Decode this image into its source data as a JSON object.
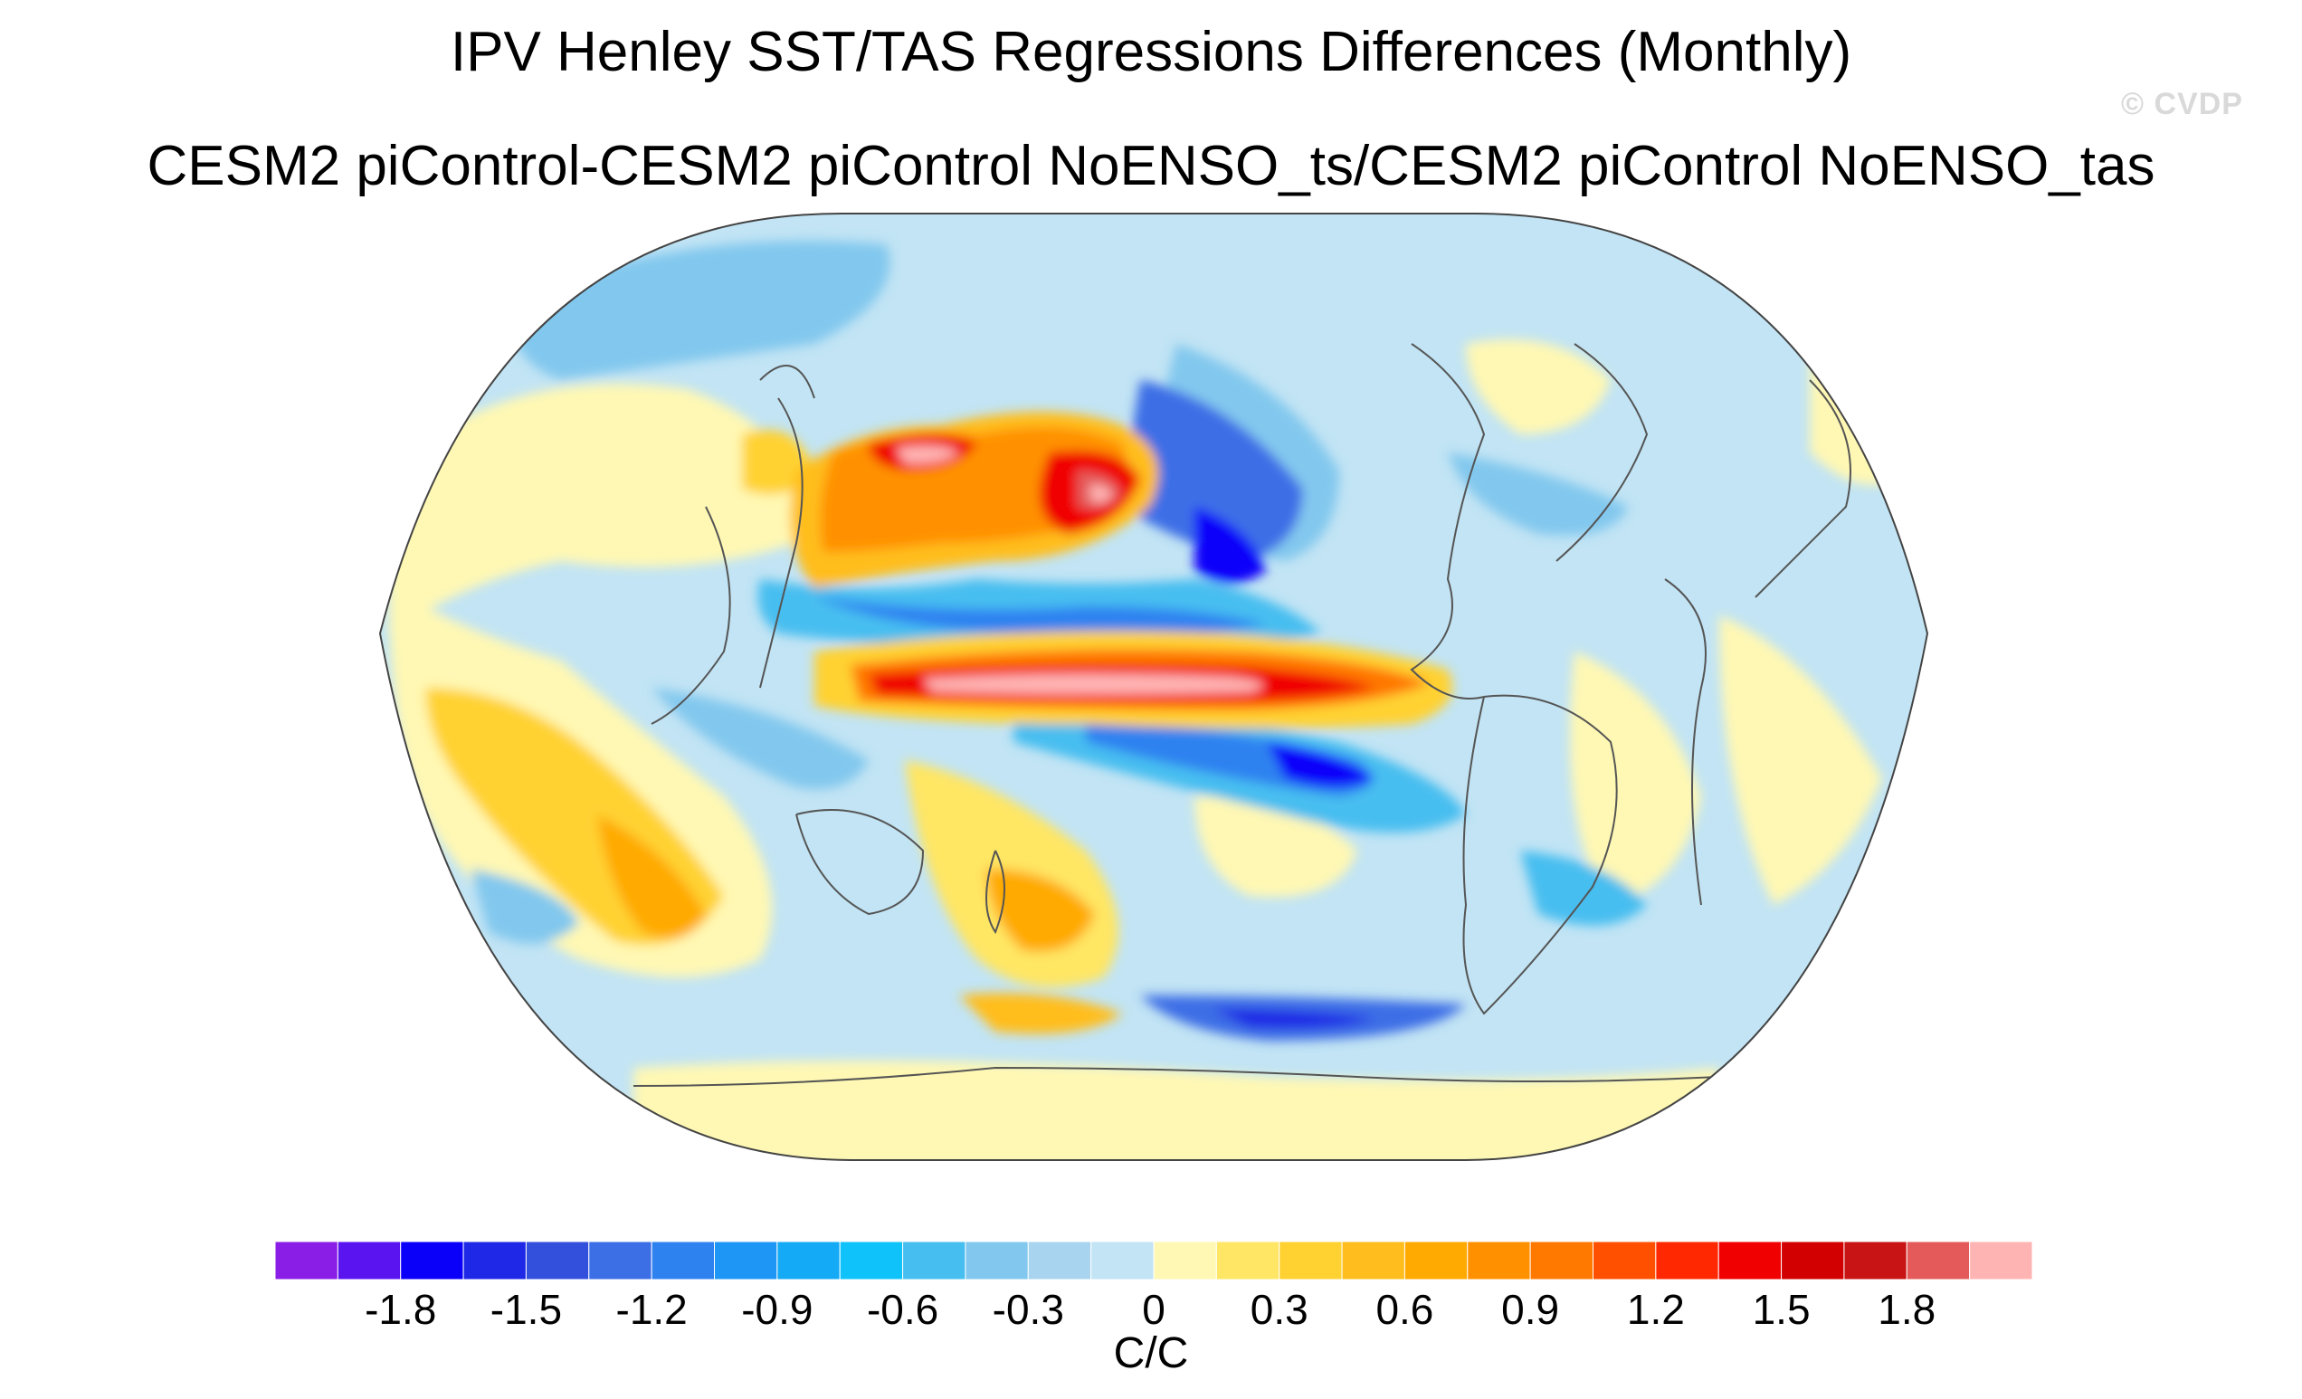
{
  "title": "IPV Henley SST/TAS Regressions Differences (Monthly)",
  "subtitle": "CESM2 piControl-CESM2 piControl NoENSO_ts/CESM2 piControl NoENSO_tas",
  "credit": "© CVDP",
  "colorbar": {
    "units": "C/C",
    "tick_labels": [
      "-1.8",
      "-1.5",
      "-1.2",
      "-0.9",
      "-0.6",
      "-0.3",
      "0",
      "0.3",
      "0.6",
      "0.9",
      "1.2",
      "1.5",
      "1.8"
    ],
    "colors": [
      "#8a1ee6",
      "#5a14f0",
      "#0a00fa",
      "#1e28e6",
      "#3250dc",
      "#3c6ee6",
      "#2d82f0",
      "#1e96f5",
      "#14aaf5",
      "#0fc3fa",
      "#46bef0",
      "#82c8ee",
      "#a8d4ef",
      "#c2e4f4",
      "#fff8b4",
      "#ffe664",
      "#ffd232",
      "#ffbe1e",
      "#ffaa00",
      "#ff9100",
      "#ff7800",
      "#ff5000",
      "#ff2800",
      "#f00000",
      "#d20000",
      "#c81414",
      "#e45a5a",
      "#ffb4b4"
    ]
  },
  "map": {
    "projection": "robinson",
    "ocean_background": "#c2e4f4"
  }
}
